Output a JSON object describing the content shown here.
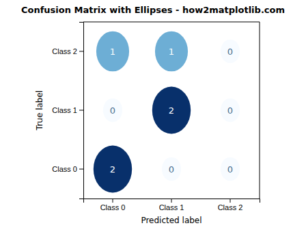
{
  "chart_data": {
    "type": "heatmap",
    "title": "Confusion Matrix with Ellipses - how2matplotlib.com",
    "x_label": "Predicted label",
    "y_label": "True label",
    "categories": [
      "Class 0",
      "Class 1",
      "Class 2"
    ],
    "values": [
      [
        2,
        0,
        0
      ],
      [
        0,
        2,
        0
      ],
      [
        1,
        1,
        0
      ]
    ],
    "color_range": [
      0,
      2
    ],
    "data_labels": true
  }
}
